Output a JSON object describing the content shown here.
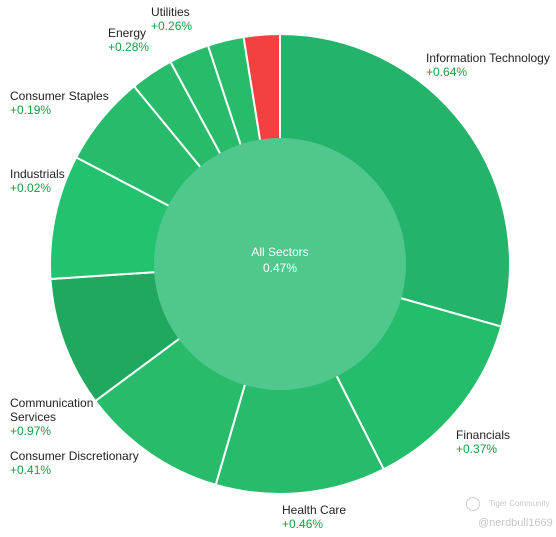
{
  "chart_data": {
    "type": "pie",
    "center": {
      "label": "All Sectors",
      "value": "0.47%"
    },
    "slices": [
      {
        "name": "Information Technology",
        "change": "+0.64%",
        "weight": 29.0,
        "color": "#24b36a"
      },
      {
        "name": "Financials",
        "change": "+0.37%",
        "weight": 13.0,
        "color": "#24bd6b"
      },
      {
        "name": "Health Care",
        "change": "+0.46%",
        "weight": 11.8,
        "color": "#26bc6c"
      },
      {
        "name": "Consumer Discretionary",
        "change": "+0.41%",
        "weight": 10.2,
        "color": "#27bb6a"
      },
      {
        "name": "Communication Services",
        "change": "+0.97%",
        "weight": 9.0,
        "color": "#20a85e"
      },
      {
        "name": "Industrials",
        "change": "+0.02%",
        "weight": 8.6,
        "color": "#23c26e"
      },
      {
        "name": "Consumer Staples",
        "change": "+0.19%",
        "weight": 6.3,
        "color": "#27bc6b"
      },
      {
        "name": "",
        "change": "",
        "weight": 3.0,
        "color": "#27bb6a"
      },
      {
        "name": "Energy",
        "change": "+0.28%",
        "weight": 2.8,
        "color": "#27bb6a"
      },
      {
        "name": "Utilities",
        "change": "+0.26%",
        "weight": 2.5,
        "color": "#27bb6a"
      },
      {
        "name": "",
        "change": "",
        "weight": 2.5,
        "color": "#f44040"
      }
    ]
  },
  "watermark": {
    "brand": "Tiger Community",
    "handle": "@nerdbull1669"
  }
}
